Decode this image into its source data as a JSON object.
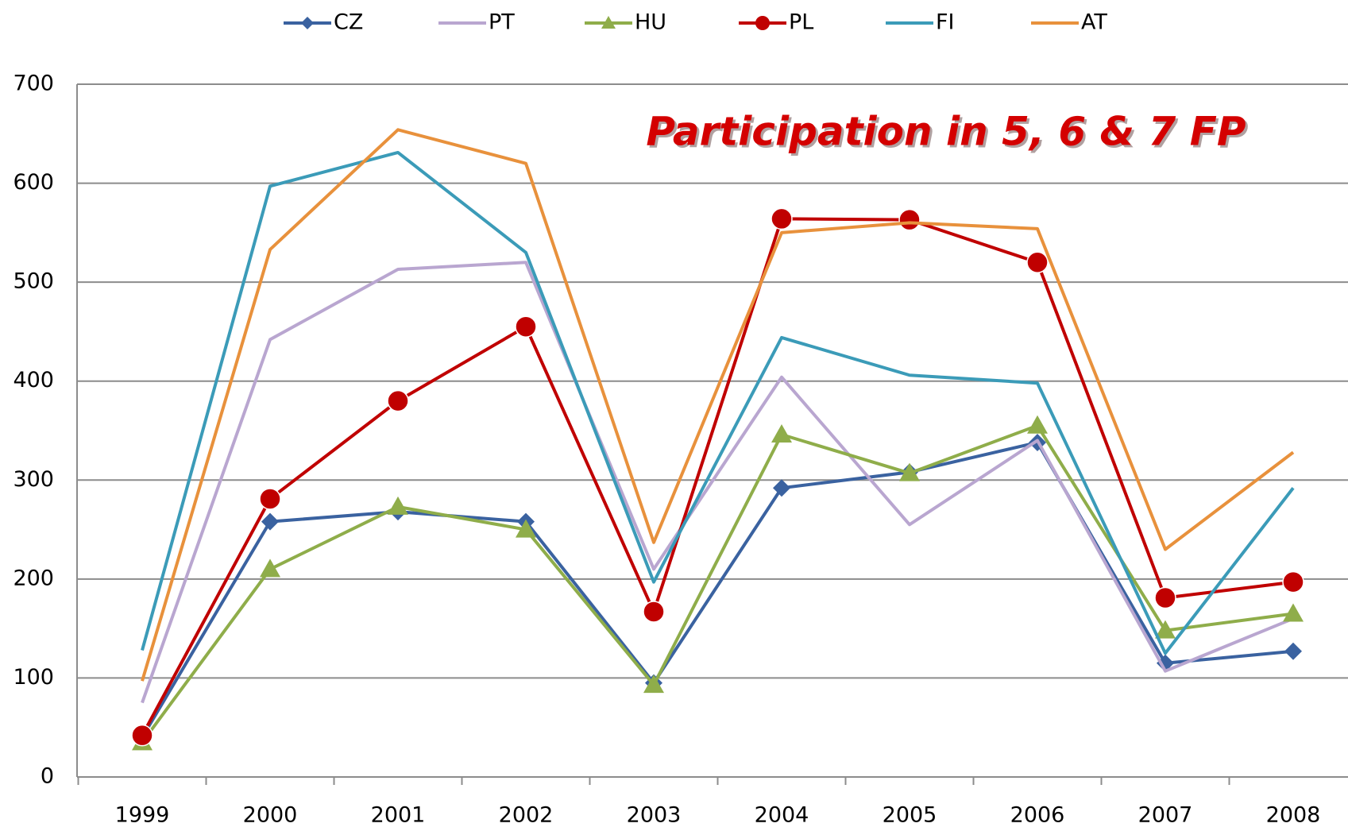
{
  "chart_data": {
    "type": "line",
    "title": "Participation in 5, 6 & 7 FP",
    "categories": [
      "1999",
      "2000",
      "2001",
      "2002",
      "2003",
      "2004",
      "2005",
      "2006",
      "2007",
      "2008"
    ],
    "series": [
      {
        "name": "CZ",
        "color": "#3a62a0",
        "marker": "diamond",
        "values": [
          40,
          258,
          268,
          258,
          95,
          292,
          308,
          338,
          115,
          127
        ]
      },
      {
        "name": "PT",
        "color": "#b9a6d0",
        "marker": "none",
        "values": [
          75,
          442,
          513,
          520,
          210,
          404,
          255,
          340,
          107,
          160
        ]
      },
      {
        "name": "HU",
        "color": "#8fad4a",
        "marker": "triangle",
        "values": [
          35,
          210,
          273,
          250,
          93,
          346,
          307,
          355,
          148,
          165
        ]
      },
      {
        "name": "PL",
        "color": "#c00000",
        "marker": "circle",
        "values": [
          42,
          281,
          380,
          455,
          167,
          564,
          563,
          520,
          181,
          197
        ]
      },
      {
        "name": "FI",
        "color": "#3b9bb8",
        "marker": "none",
        "values": [
          128,
          597,
          631,
          530,
          197,
          444,
          406,
          398,
          125,
          292
        ]
      },
      {
        "name": "AT",
        "color": "#e8913c",
        "marker": "none",
        "values": [
          97,
          533,
          654,
          620,
          237,
          550,
          560,
          554,
          230,
          328
        ]
      }
    ],
    "ylim": [
      0,
      700
    ],
    "yticks": [
      0,
      100,
      200,
      300,
      400,
      500,
      600,
      700
    ],
    "grid": true,
    "legend": "top"
  }
}
